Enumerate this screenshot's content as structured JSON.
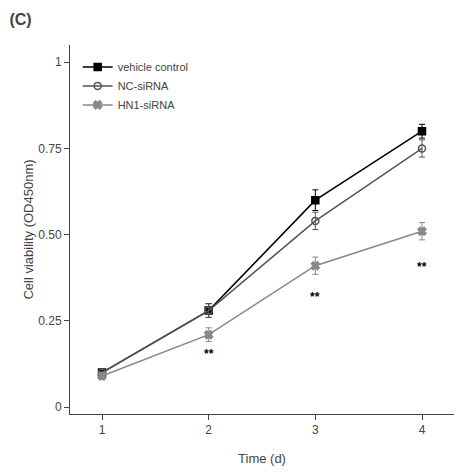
{
  "chart_data": {
    "type": "line",
    "title": "(C)",
    "xlabel": "Time (d)",
    "ylabel": "Cell viability (OD450nm)",
    "x": [
      1,
      2,
      3,
      4
    ],
    "series": [
      {
        "name": "vehicle control",
        "color": "#000000",
        "marker": "square",
        "line_style": "solid",
        "values": [
          0.1,
          0.28,
          0.6,
          0.8
        ],
        "err": [
          0.01,
          0.02,
          0.03,
          0.02
        ]
      },
      {
        "name": "NC-siRNA",
        "color": "#555555",
        "marker": "circle-open",
        "line_style": "solid",
        "values": [
          0.1,
          0.28,
          0.54,
          0.75
        ],
        "err": [
          0.01,
          0.02,
          0.025,
          0.025
        ]
      },
      {
        "name": "HN1-siRNA",
        "color": "#888888",
        "marker": "x",
        "line_style": "solid",
        "values": [
          0.09,
          0.21,
          0.41,
          0.51
        ],
        "err": [
          0.01,
          0.02,
          0.025,
          0.025
        ]
      }
    ],
    "annotations": [
      {
        "x": 2,
        "y": 0.155,
        "text": "**"
      },
      {
        "x": 3,
        "y": 0.32,
        "text": "**"
      },
      {
        "x": 4,
        "y": 0.405,
        "text": "**"
      }
    ],
    "xlim": [
      0.7,
      4.3
    ],
    "xticks": [
      1,
      2,
      3,
      4
    ],
    "ylim": [
      -0.02,
      1.05
    ],
    "yticks": [
      0,
      0.25,
      {
        "value": 0.5,
        "label": "0.50"
      },
      0.75,
      1
    ],
    "legend": "upper left",
    "grid": false
  }
}
